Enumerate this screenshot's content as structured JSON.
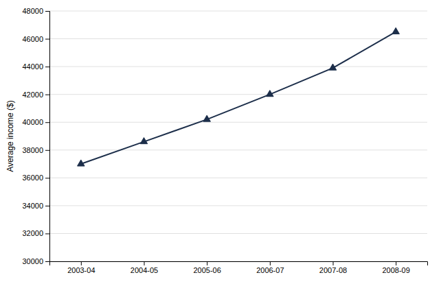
{
  "chart_data": {
    "type": "line",
    "ylabel": "Average income ($)",
    "categories": [
      "2003-04",
      "2004-05",
      "2005-06",
      "2006-07",
      "2007-08",
      "2008-09"
    ],
    "values": [
      37000,
      38600,
      40200,
      42000,
      43900,
      46500
    ],
    "color": "#1C2E4A",
    "marker": "triangle",
    "ylim": [
      30000,
      48000
    ],
    "yticks": [
      30000,
      32000,
      34000,
      36000,
      38000,
      40000,
      42000,
      44000,
      46000,
      48000
    ],
    "grid": true
  }
}
